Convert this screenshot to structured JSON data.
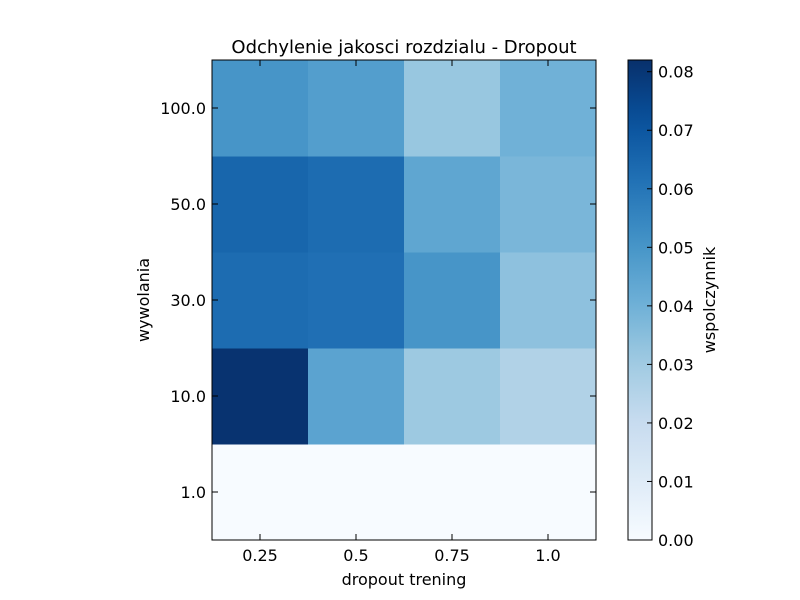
{
  "chart_data": {
    "type": "heatmap",
    "title": "Odchylenie jakosci rozdzialu - Dropout",
    "xlabel": "dropout trening",
    "ylabel": "wywolania",
    "x_categories": [
      "0.25",
      "0.5",
      "0.75",
      "1.0"
    ],
    "y_categories": [
      "1.0",
      "10.0",
      "30.0",
      "50.0",
      "100.0"
    ],
    "values": [
      [
        0.0,
        0.0,
        0.0,
        0.0
      ],
      [
        0.081,
        0.045,
        0.031,
        0.026
      ],
      [
        0.063,
        0.062,
        0.05,
        0.034
      ],
      [
        0.065,
        0.063,
        0.044,
        0.038
      ],
      [
        0.05,
        0.047,
        0.032,
        0.04
      ]
    ],
    "colormap": "Blues",
    "colorbar": {
      "label": "wspolczynnik",
      "range": [
        0.0,
        0.082
      ],
      "ticks": [
        "0.00",
        "0.01",
        "0.02",
        "0.03",
        "0.04",
        "0.05",
        "0.06",
        "0.07",
        "0.08"
      ]
    }
  }
}
